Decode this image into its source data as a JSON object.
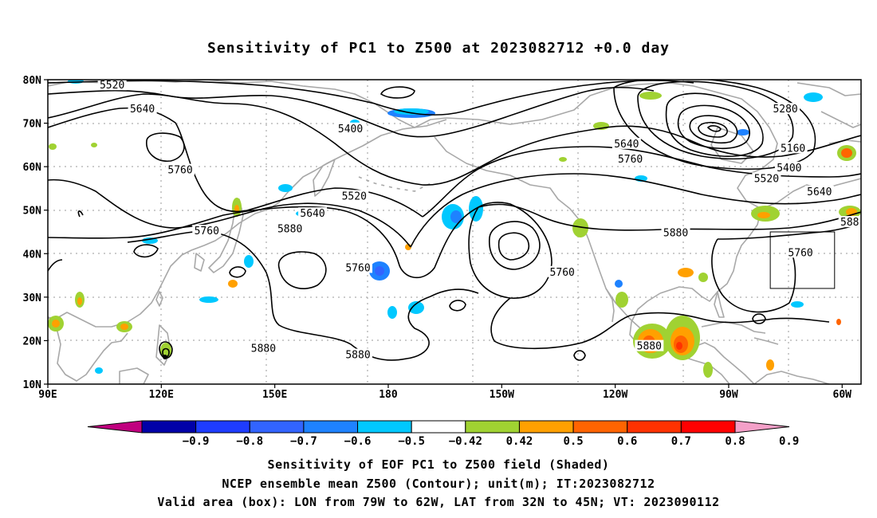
{
  "title": "Sensitivity of PC1 to Z500 at 2023082712 +0.0 day",
  "map": {
    "lat_labels": [
      "80N",
      "70N",
      "60N",
      "50N",
      "40N",
      "30N",
      "20N",
      "10N"
    ],
    "lon_labels": [
      "90E",
      "120E",
      "150E",
      "180",
      "150W",
      "120W",
      "90W",
      "60W"
    ],
    "lon_range": [
      90,
      305
    ],
    "lat_range": [
      10,
      80
    ]
  },
  "contours": {
    "color": "#000000",
    "labels": [
      {
        "text": "5520",
        "lon": 107,
        "lat": 78.5
      },
      {
        "text": "5640",
        "lon": 115,
        "lat": 73
      },
      {
        "text": "5400",
        "lon": 170,
        "lat": 68.5
      },
      {
        "text": "5760",
        "lon": 125,
        "lat": 59
      },
      {
        "text": "5520",
        "lon": 171,
        "lat": 53
      },
      {
        "text": "5640",
        "lon": 160,
        "lat": 49
      },
      {
        "text": "5760",
        "lon": 132,
        "lat": 45
      },
      {
        "text": "5880",
        "lon": 154,
        "lat": 45.5
      },
      {
        "text": "5640",
        "lon": 243,
        "lat": 65
      },
      {
        "text": "5760",
        "lon": 244,
        "lat": 61.5
      },
      {
        "text": "5280",
        "lon": 285,
        "lat": 73
      },
      {
        "text": "5160",
        "lon": 287,
        "lat": 64
      },
      {
        "text": "5400",
        "lon": 286,
        "lat": 59.5
      },
      {
        "text": "5520",
        "lon": 280,
        "lat": 57
      },
      {
        "text": "5640",
        "lon": 294,
        "lat": 54
      },
      {
        "text": "5880",
        "lon": 256,
        "lat": 44.5
      },
      {
        "text": "5760",
        "lon": 289,
        "lat": 40
      },
      {
        "text": "588",
        "lon": 302,
        "lat": 47
      },
      {
        "text": "5760",
        "lon": 172,
        "lat": 36.5
      },
      {
        "text": "5760",
        "lon": 226,
        "lat": 35.5
      },
      {
        "text": "5880",
        "lon": 147,
        "lat": 18
      },
      {
        "text": "5880",
        "lon": 172,
        "lat": 16.5
      },
      {
        "text": "5880",
        "lon": 249,
        "lat": 18.5
      }
    ]
  },
  "valid_box": {
    "lon_min": 281,
    "lon_max": 298,
    "lat_min": 32,
    "lat_max": 45
  },
  "colorbar": {
    "levels": [
      "−0.9",
      "−0.8",
      "−0.7",
      "−0.6",
      "−0.5",
      "−0.42",
      "0.42",
      "0.5",
      "0.6",
      "0.7",
      "0.8",
      "0.9"
    ],
    "colors": [
      "#c0007f",
      "#0000a8",
      "#1e3cff",
      "#3264ff",
      "#1e82ff",
      "#00c8ff",
      "#ffffff",
      "#a0d232",
      "#ffa000",
      "#ff6400",
      "#ff3200",
      "#ff0000",
      "#f4a0c8"
    ]
  },
  "captions": {
    "line1": "Sensitivity of EOF PC1 to Z500 field (Shaded)",
    "line2": "NCEP ensemble mean Z500 (Contour); unit(m); IT:2023082712",
    "line3": "Valid area (box): LON from 79W to 62W, LAT from 32N to 45N; VT: 2023090112"
  }
}
